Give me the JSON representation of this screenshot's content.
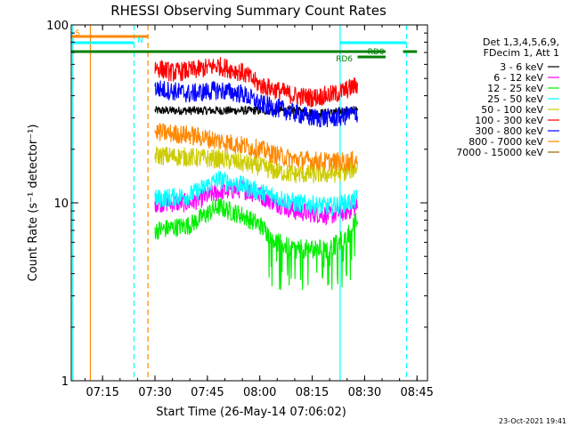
{
  "chart_data": {
    "type": "line",
    "title": "RHESSI Observing Summary Count Rates",
    "xlabel": "Start Time (26-May-14 07:06:02)",
    "ylabel": "Count Rate (s⁻¹ detector⁻¹)",
    "yscale": "log",
    "ylim": [
      1,
      100
    ],
    "xlim": [
      "07:06:02",
      "08:48:00"
    ],
    "x_ticks": [
      "07:15",
      "07:30",
      "07:45",
      "08:00",
      "08:15",
      "08:30",
      "08:45"
    ],
    "y_ticks": [
      "1",
      "10",
      "100"
    ],
    "grid": false,
    "legend_position": "right",
    "legend_header": [
      "Det 1,3,4,5,6,9,",
      "FDecim 1, Att 1"
    ],
    "series": [
      {
        "name": "3 - 6 keV",
        "color": "#000000",
        "x": [
          "07:30",
          "07:40",
          "07:50",
          "08:00",
          "08:10",
          "08:15",
          "08:20",
          "08:25",
          "08:28"
        ],
        "values": [
          33,
          33,
          33,
          33,
          33,
          32,
          32,
          33,
          33
        ]
      },
      {
        "name": "6 - 12 keV",
        "color": "#ff00ff",
        "x": [
          "07:30",
          "07:40",
          "07:48",
          "07:55",
          "08:00",
          "08:10",
          "08:20",
          "08:25",
          "08:28"
        ],
        "values": [
          10,
          10,
          11.5,
          12,
          11,
          9,
          8.5,
          9,
          9.5
        ]
      },
      {
        "name": "12 - 25 keV",
        "color": "#00ee00",
        "x": [
          "07:30",
          "07:40",
          "07:48",
          "07:55",
          "08:00",
          "08:05",
          "08:10",
          "08:20",
          "08:25",
          "08:28"
        ],
        "values": [
          7,
          7.5,
          9.5,
          8.5,
          7.5,
          6,
          5.5,
          5.5,
          6.5,
          8
        ]
      },
      {
        "name": "25 - 50 keV",
        "color": "#00ffff",
        "x": [
          "07:30",
          "07:40",
          "07:48",
          "07:55",
          "08:00",
          "08:10",
          "08:20",
          "08:25",
          "08:28"
        ],
        "values": [
          10.5,
          11,
          13.5,
          12.5,
          11.5,
          10,
          9.5,
          10,
          10.5
        ]
      },
      {
        "name": "50 - 100 keV",
        "color": "#cccc00",
        "x": [
          "07:30",
          "07:40",
          "07:50",
          "08:00",
          "08:05",
          "08:10",
          "08:20",
          "08:25",
          "08:28"
        ],
        "values": [
          18.5,
          18,
          17.5,
          16,
          15,
          14.5,
          14.5,
          15,
          16
        ]
      },
      {
        "name": "100 - 300 keV",
        "color": "#ff0000",
        "x": [
          "07:30",
          "07:35",
          "07:42",
          "07:48",
          "07:55",
          "08:00",
          "08:10",
          "08:15",
          "08:22",
          "08:28"
        ],
        "values": [
          58,
          54,
          56,
          59,
          54,
          46,
          40,
          39,
          41,
          46
        ]
      },
      {
        "name": "300 - 800 keV",
        "color": "#0000ff",
        "x": [
          "07:30",
          "07:40",
          "07:48",
          "07:55",
          "08:00",
          "08:10",
          "08:15",
          "08:22",
          "08:28"
        ],
        "values": [
          44,
          41,
          43,
          41,
          36,
          32,
          30,
          30,
          32
        ]
      },
      {
        "name": "800 - 7000 keV",
        "color": "#ff8800",
        "x": [
          "07:30",
          "07:40",
          "07:50",
          "08:00",
          "08:05",
          "08:10",
          "08:20",
          "08:25",
          "08:28"
        ],
        "values": [
          25,
          24,
          22,
          20,
          18.5,
          17.5,
          17,
          17,
          17.5
        ]
      },
      {
        "name": "7000 - 15000 keV",
        "color": "#996600",
        "x": [],
        "values": []
      }
    ],
    "annotations": [
      {
        "label": "S",
        "color": "#ff8800",
        "start": "07:06:02",
        "end": "07:28:00"
      },
      {
        "label": "N",
        "color": "#00ffff",
        "start": "07:06:02",
        "end": "07:24:00"
      },
      {
        "label": "RD0",
        "color": "#00ffff",
        "start": "08:23:00",
        "end": "08:42:00"
      },
      {
        "label": "RD6",
        "color": "#008000",
        "start": "08:28:00",
        "end": "08:36:00"
      }
    ],
    "vertical_lines": [
      {
        "time": "07:06:30",
        "color": "#00ffff",
        "style": "solid"
      },
      {
        "time": "07:11:30",
        "color": "#ff8800",
        "style": "solid"
      },
      {
        "time": "07:24:00",
        "color": "#00ffff",
        "style": "dashed"
      },
      {
        "time": "07:28:00",
        "color": "#ff8800",
        "style": "dashed"
      },
      {
        "time": "08:23:00",
        "color": "#00ffff",
        "style": "solid"
      },
      {
        "time": "08:42:00",
        "color": "#00ffff",
        "style": "dashed"
      }
    ],
    "footer_timestamp": "23-Oct-2021 19:41"
  }
}
